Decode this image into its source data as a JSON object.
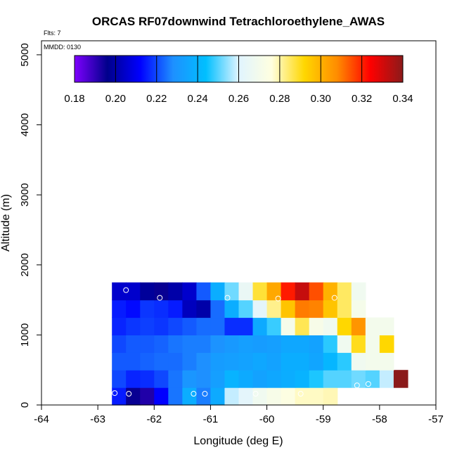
{
  "chart_data": {
    "type": "heatmap",
    "title": "ORCAS RF07downwind Tetrachloroethylene_AWAS",
    "notes": {
      "flights": "Flts: 7",
      "date": "MMDD: 0130"
    },
    "xlabel": "Longitude (deg E)",
    "ylabel": "Altitude (m)",
    "xlim": [
      -64,
      -57
    ],
    "ylim": [
      0,
      5200
    ],
    "xticks": [
      -64,
      -63,
      -62,
      -61,
      -60,
      -59,
      -58,
      -57
    ],
    "xtick_labels": [
      "-64",
      "-63",
      "-62",
      "-61",
      "-60",
      "-59",
      "-58",
      "-57"
    ],
    "yticks": [
      0,
      1000,
      2000,
      3000,
      4000,
      5000
    ],
    "ytick_labels": [
      "0",
      "1000",
      "2000",
      "3000",
      "4000",
      "5000"
    ],
    "colorbar": {
      "range": [
        0.18,
        0.34
      ],
      "ticks": [
        0.18,
        0.2,
        0.22,
        0.24,
        0.26,
        0.28,
        0.3,
        0.32,
        0.34
      ],
      "tick_labels": [
        "0.18",
        "0.20",
        "0.22",
        "0.24",
        "0.26",
        "0.28",
        "0.30",
        "0.32",
        "0.34"
      ],
      "stops": [
        "#7f00ff",
        "#00008b",
        "#0000ff",
        "#1e90ff",
        "#00bfff",
        "#e0f4ff",
        "#ffffe0",
        "#ffd700",
        "#ff8c00",
        "#ff0000",
        "#8b1a1a"
      ]
    },
    "grid": {
      "x_start": -62.75,
      "x_step": 0.25,
      "y_step": 250,
      "rows": [
        {
          "alt_bottom": 0,
          "values": [
            0.215,
            0.195,
            0.192,
            0.212,
            0.225,
            0.238,
            0.226,
            0.237,
            0.258,
            0.262,
            0.268,
            0.272,
            0.275,
            0.278,
            0.278,
            0.279,
            null,
            null,
            null,
            null,
            null
          ]
        },
        {
          "alt_bottom": 250,
          "values": [
            0.22,
            0.216,
            0.217,
            0.22,
            0.225,
            0.23,
            0.228,
            0.233,
            0.24,
            0.237,
            0.234,
            0.236,
            0.238,
            0.24,
            0.246,
            0.25,
            0.25,
            0.252,
            0.25,
            0.258,
            0.342
          ]
        },
        {
          "alt_bottom": 500,
          "values": [
            0.222,
            0.222,
            0.223,
            0.224,
            0.224,
            0.226,
            0.228,
            0.232,
            0.233,
            0.234,
            0.236,
            0.234,
            0.238,
            0.238,
            0.235,
            0.241,
            0.247,
            0.268,
            0.27,
            0.27,
            null
          ]
        },
        {
          "alt_bottom": 750,
          "values": [
            0.22,
            0.222,
            0.222,
            0.223,
            0.225,
            0.226,
            0.226,
            0.229,
            0.231,
            0.233,
            0.232,
            0.233,
            0.236,
            0.236,
            0.234,
            0.247,
            0.268,
            0.29,
            0.27,
            0.292,
            null
          ]
        },
        {
          "alt_bottom": 1000,
          "values": [
            0.216,
            0.218,
            0.219,
            0.218,
            0.22,
            0.222,
            0.224,
            0.224,
            0.217,
            0.217,
            0.237,
            0.248,
            0.271,
            0.286,
            0.272,
            0.268,
            0.292,
            0.306,
            0.27,
            0.27,
            null
          ]
        },
        {
          "alt_bottom": 1250,
          "values": [
            0.215,
            0.213,
            0.218,
            0.217,
            0.215,
            0.203,
            0.2,
            0.224,
            0.238,
            0.25,
            0.262,
            0.282,
            0.296,
            0.31,
            0.309,
            0.296,
            0.285,
            0.271,
            null,
            null,
            null
          ]
        },
        {
          "alt_bottom": 1500,
          "values": [
            0.205,
            0.205,
            0.198,
            0.195,
            0.2,
            0.205,
            0.222,
            0.238,
            0.252,
            0.265,
            0.288,
            0.302,
            0.321,
            0.332,
            0.315,
            0.3,
            0.285,
            0.268,
            null,
            null,
            null
          ]
        }
      ]
    },
    "sample_points": [
      {
        "lon": -62.7,
        "alt": 170
      },
      {
        "lon": -62.5,
        "alt": 1640
      },
      {
        "lon": -62.45,
        "alt": 160
      },
      {
        "lon": -61.9,
        "alt": 1530
      },
      {
        "lon": -61.3,
        "alt": 160
      },
      {
        "lon": -61.1,
        "alt": 160
      },
      {
        "lon": -60.7,
        "alt": 1530
      },
      {
        "lon": -60.2,
        "alt": 160
      },
      {
        "lon": -59.8,
        "alt": 1520
      },
      {
        "lon": -59.4,
        "alt": 160
      },
      {
        "lon": -58.8,
        "alt": 1530
      },
      {
        "lon": -58.4,
        "alt": 280
      },
      {
        "lon": -58.2,
        "alt": 300
      }
    ]
  }
}
